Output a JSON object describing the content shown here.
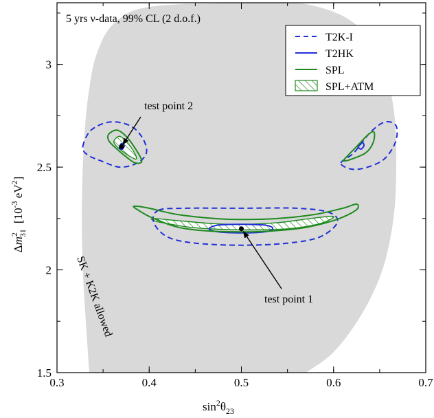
{
  "chart_data": {
    "type": "line",
    "title": "5 yrs ν-data, 99% CL (2 d.o.f.)",
    "xlabel": {
      "base": "sin",
      "sup": "2",
      "greek": "θ",
      "sub": "23"
    },
    "ylabel": {
      "delta": "Δ",
      "m": "m",
      "sup": "2",
      "sub": "31",
      "unit": "[10",
      "unit_sup": "-3",
      "unit_tail": " eV",
      "unit_sup2": "2",
      "close": "]"
    },
    "xlim": [
      0.3,
      0.7
    ],
    "ylim": [
      1.5,
      3.3
    ],
    "xticks": [
      "0.3",
      "0.4",
      "0.5",
      "0.6",
      "0.7"
    ],
    "yticks": [
      "1.5",
      "2",
      "2.5",
      "3"
    ],
    "xtick_values": [
      0.3,
      0.4,
      0.5,
      0.6,
      0.7
    ],
    "ytick_values": [
      1.5,
      2.0,
      2.5,
      3.0
    ],
    "grid": false,
    "legend_position": "top-right",
    "legend": [
      {
        "label": "T2K-I",
        "color": "#1f2fd6",
        "style": "dashed"
      },
      {
        "label": "T2HK",
        "color": "#1f2fd6",
        "style": "solid"
      },
      {
        "label": "SPL",
        "color": "#1e8a1e",
        "style": "solid"
      },
      {
        "label": "SPL+ATM",
        "color": "#1e8a1e",
        "style": "hatched"
      }
    ],
    "colors": {
      "allowed_region": "#d9d9d9",
      "blue": "#1f2fd6",
      "green": "#1e8a1e"
    },
    "allowed_region_label": "SK + K2K allowed",
    "test_points": [
      {
        "label": "test point 1",
        "x": 0.5,
        "y": 2.2
      },
      {
        "label": "test point 2",
        "x": 0.37,
        "y": 2.6
      }
    ],
    "allowed_region": [
      [
        0.335,
        1.5
      ],
      [
        0.332,
        1.7
      ],
      [
        0.328,
        2.0
      ],
      [
        0.327,
        2.3
      ],
      [
        0.329,
        2.6
      ],
      [
        0.334,
        2.85
      ],
      [
        0.343,
        3.05
      ],
      [
        0.362,
        3.2
      ],
      [
        0.4,
        3.28
      ],
      [
        0.5,
        3.3
      ],
      [
        0.56,
        3.3
      ],
      [
        0.608,
        3.24
      ],
      [
        0.638,
        3.13
      ],
      [
        0.657,
        2.95
      ],
      [
        0.666,
        2.75
      ],
      [
        0.668,
        2.5
      ],
      [
        0.665,
        2.25
      ],
      [
        0.653,
        2.0
      ],
      [
        0.63,
        1.78
      ],
      [
        0.6,
        1.6
      ],
      [
        0.57,
        1.5
      ]
    ],
    "series": [
      {
        "name": "T2K-I",
        "closed": true,
        "points": [
          [
            0.328,
            2.6
          ],
          [
            0.337,
            2.68
          ],
          [
            0.358,
            2.72
          ],
          [
            0.38,
            2.7
          ],
          [
            0.393,
            2.64
          ],
          [
            0.397,
            2.57
          ],
          [
            0.387,
            2.52
          ],
          [
            0.368,
            2.5
          ],
          [
            0.348,
            2.53
          ],
          [
            0.333,
            2.56
          ]
        ]
      },
      {
        "name": "T2K-I",
        "closed": true,
        "points": [
          [
            0.608,
            2.52
          ],
          [
            0.622,
            2.57
          ],
          [
            0.64,
            2.67
          ],
          [
            0.656,
            2.72
          ],
          [
            0.668,
            2.7
          ],
          [
            0.667,
            2.62
          ],
          [
            0.655,
            2.54
          ],
          [
            0.637,
            2.5
          ],
          [
            0.62,
            2.49
          ]
        ]
      },
      {
        "name": "T2K-I",
        "closed": true,
        "points": [
          [
            0.41,
            2.29
          ],
          [
            0.44,
            2.3
          ],
          [
            0.5,
            2.3
          ],
          [
            0.56,
            2.3
          ],
          [
            0.595,
            2.28
          ],
          [
            0.604,
            2.23
          ],
          [
            0.585,
            2.16
          ],
          [
            0.55,
            2.13
          ],
          [
            0.5,
            2.12
          ],
          [
            0.45,
            2.13
          ],
          [
            0.42,
            2.16
          ],
          [
            0.405,
            2.23
          ]
        ]
      },
      {
        "name": "T2HK",
        "closed": true,
        "points": [
          [
            0.368,
            2.6
          ],
          [
            0.37,
            2.615
          ],
          [
            0.373,
            2.605
          ],
          [
            0.371,
            2.588
          ],
          [
            0.368,
            2.59
          ]
        ]
      },
      {
        "name": "T2HK",
        "closed": true,
        "points": [
          [
            0.627,
            2.6
          ],
          [
            0.631,
            2.62
          ],
          [
            0.633,
            2.605
          ],
          [
            0.63,
            2.588
          ],
          [
            0.627,
            2.595
          ]
        ]
      },
      {
        "name": "T2HK",
        "closed": true,
        "points": [
          [
            0.465,
            2.2
          ],
          [
            0.475,
            2.218
          ],
          [
            0.5,
            2.222
          ],
          [
            0.527,
            2.217
          ],
          [
            0.534,
            2.2
          ],
          [
            0.525,
            2.185
          ],
          [
            0.5,
            2.18
          ],
          [
            0.475,
            2.185
          ]
        ]
      },
      {
        "name": "SPL",
        "closed": true,
        "points": [
          [
            0.356,
            2.66
          ],
          [
            0.365,
            2.68
          ],
          [
            0.375,
            2.65
          ],
          [
            0.385,
            2.59
          ],
          [
            0.392,
            2.53
          ],
          [
            0.385,
            2.52
          ],
          [
            0.375,
            2.55
          ],
          [
            0.362,
            2.6
          ],
          [
            0.356,
            2.63
          ]
        ]
      },
      {
        "name": "SPL",
        "closed": true,
        "points": [
          [
            0.612,
            2.54
          ],
          [
            0.625,
            2.6
          ],
          [
            0.638,
            2.66
          ],
          [
            0.644,
            2.67
          ],
          [
            0.643,
            2.62
          ],
          [
            0.635,
            2.57
          ],
          [
            0.62,
            2.54
          ],
          [
            0.612,
            2.53
          ]
        ]
      },
      {
        "name": "SPL",
        "closed": true,
        "points": [
          [
            0.385,
            2.31
          ],
          [
            0.4,
            2.3
          ],
          [
            0.43,
            2.27
          ],
          [
            0.47,
            2.25
          ],
          [
            0.5,
            2.245
          ],
          [
            0.54,
            2.25
          ],
          [
            0.58,
            2.27
          ],
          [
            0.61,
            2.3
          ],
          [
            0.625,
            2.32
          ],
          [
            0.624,
            2.29
          ],
          [
            0.6,
            2.24
          ],
          [
            0.56,
            2.2
          ],
          [
            0.5,
            2.185
          ],
          [
            0.44,
            2.2
          ],
          [
            0.405,
            2.25
          ],
          [
            0.385,
            2.3
          ]
        ]
      },
      {
        "name": "SPL+ATM",
        "closed": true,
        "points": [
          [
            0.362,
            2.63
          ],
          [
            0.368,
            2.65
          ],
          [
            0.376,
            2.62
          ],
          [
            0.384,
            2.57
          ],
          [
            0.386,
            2.54
          ],
          [
            0.38,
            2.55
          ],
          [
            0.37,
            2.58
          ],
          [
            0.363,
            2.61
          ]
        ]
      },
      {
        "name": "SPL+ATM",
        "closed": true,
        "points": [
          [
            0.405,
            2.25
          ],
          [
            0.43,
            2.24
          ],
          [
            0.47,
            2.225
          ],
          [
            0.5,
            2.222
          ],
          [
            0.54,
            2.23
          ],
          [
            0.575,
            2.25
          ],
          [
            0.6,
            2.26
          ],
          [
            0.585,
            2.225
          ],
          [
            0.55,
            2.2
          ],
          [
            0.5,
            2.195
          ],
          [
            0.45,
            2.205
          ],
          [
            0.42,
            2.225
          ],
          [
            0.405,
            2.24
          ]
        ]
      }
    ]
  }
}
